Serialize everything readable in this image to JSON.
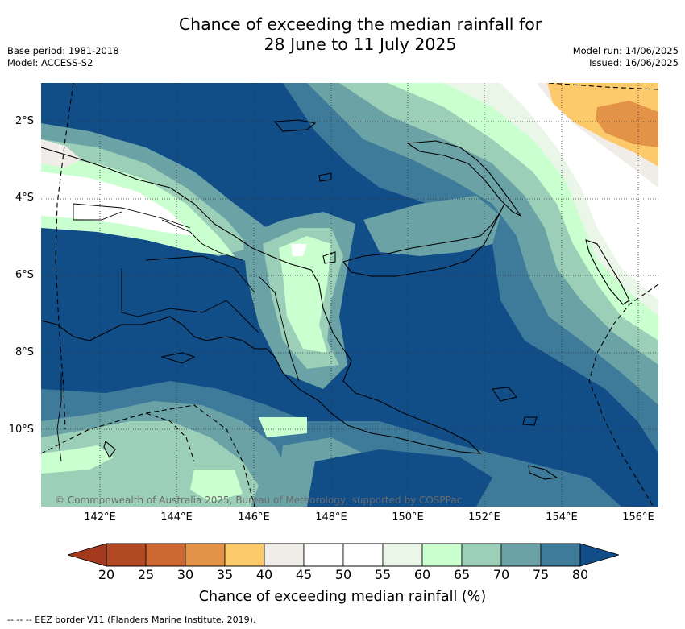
{
  "title_line1": "Chance of exceeding the median rainfall for",
  "title_line2": "28 June to 11 July 2025",
  "base_period": "Base period: 1981-2018",
  "model": "Model: ACCESS-S2",
  "model_run": "Model run: 14/06/2025",
  "issued": "Issued: 16/06/2025",
  "lat_labels": [
    "2°S",
    "4°S",
    "6°S",
    "8°S",
    "10°S"
  ],
  "lon_labels": [
    "142°E",
    "144°E",
    "146°E",
    "148°E",
    "150°E",
    "152°E",
    "154°E",
    "156°E"
  ],
  "copyright": "© Commonwealth of Australia 2025, Bureau of Meteorology, supported by COSPPac",
  "colorbar": {
    "labels": [
      "20",
      "25",
      "30",
      "35",
      "40",
      "45",
      "50",
      "55",
      "60",
      "65",
      "70",
      "75",
      "80"
    ],
    "colors": [
      "#b14a24",
      "#cd6832",
      "#e29348",
      "#fcca6a",
      "#f0ece7",
      "#ffffff",
      "#ffffff",
      "#eaf6e8",
      "#caffcf",
      "#9ccfb8",
      "#6aa2a6",
      "#3e7a99"
    ],
    "under_color": "#a4391d",
    "over_color": "#114d87",
    "title": "Chance of exceeding median rainfall (%)"
  },
  "footnote": "--  --  -- EEZ border V11 (Flanders Marine Institute, 2019)."
}
